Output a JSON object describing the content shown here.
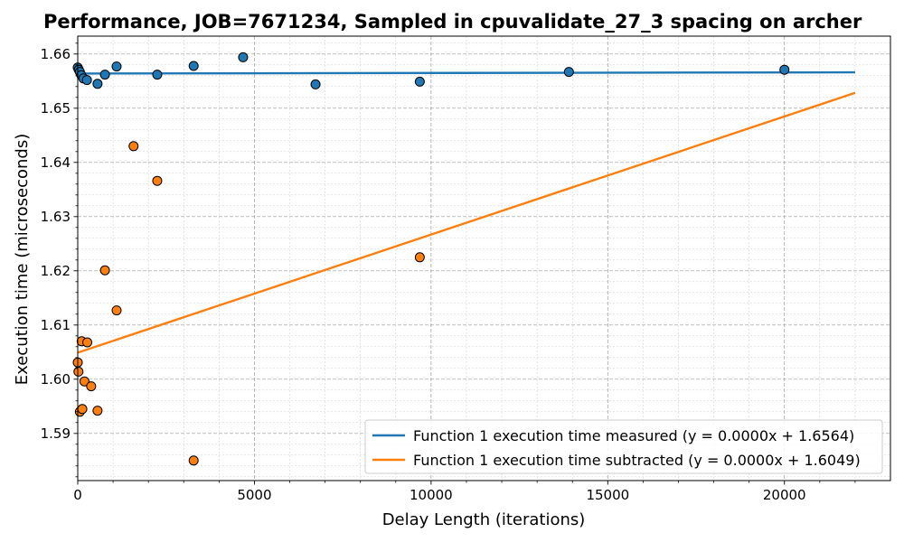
{
  "chart_data": {
    "type": "scatter",
    "title": "Performance, JOB=7671234, Sampled in cpuvalidate_27_3 spacing on archer",
    "xlabel": "Delay Length (iterations)",
    "ylabel": "Execution time (microseconds)",
    "xlim": [
      0,
      23000
    ],
    "ylim": [
      1.5813,
      1.6633
    ],
    "x_ticks": [
      0,
      5000,
      10000,
      15000,
      20000
    ],
    "y_ticks": [
      1.59,
      1.6,
      1.61,
      1.62,
      1.63,
      1.64,
      1.65,
      1.66
    ],
    "grid": "major and minor, dashed",
    "legend_position": "lower-right",
    "series": [
      {
        "name": "Function 1 execution time measured (y = 0.0000x + 1.6564)",
        "color": "#1f77b4",
        "points": [
          [
            0,
            1.6575
          ],
          [
            30,
            1.6571
          ],
          [
            60,
            1.6567
          ],
          [
            100,
            1.6561
          ],
          [
            160,
            1.6555
          ],
          [
            260,
            1.6552
          ],
          [
            560,
            1.6545
          ],
          [
            770,
            1.6562
          ],
          [
            1100,
            1.6577
          ],
          [
            2250,
            1.6562
          ],
          [
            3280,
            1.6578
          ],
          [
            4680,
            1.6594
          ],
          [
            6730,
            1.6544
          ],
          [
            9680,
            1.6549
          ],
          [
            13900,
            1.6567
          ],
          [
            20000,
            1.6571
          ]
        ],
        "fit": {
          "slope": 1e-08,
          "intercept": 1.6564,
          "x_range": [
            0,
            22000
          ]
        }
      },
      {
        "name": "Function 1 execution time subtracted (y = 0.0000x + 1.6049)",
        "color": "#ff7f0e",
        "points": [
          [
            0,
            1.6031
          ],
          [
            20,
            1.6014
          ],
          [
            60,
            1.594
          ],
          [
            110,
            1.607
          ],
          [
            130,
            1.5945
          ],
          [
            190,
            1.5996
          ],
          [
            270,
            1.6068
          ],
          [
            380,
            1.5987
          ],
          [
            560,
            1.5942
          ],
          [
            770,
            1.6201
          ],
          [
            1100,
            1.6127
          ],
          [
            1580,
            1.643
          ],
          [
            2250,
            1.6366
          ],
          [
            3280,
            1.585
          ],
          [
            9680,
            1.6225
          ]
        ],
        "fit": {
          "slope": 2.179e-06,
          "intercept": 1.6049,
          "x_range": [
            0,
            22000
          ]
        }
      }
    ]
  }
}
